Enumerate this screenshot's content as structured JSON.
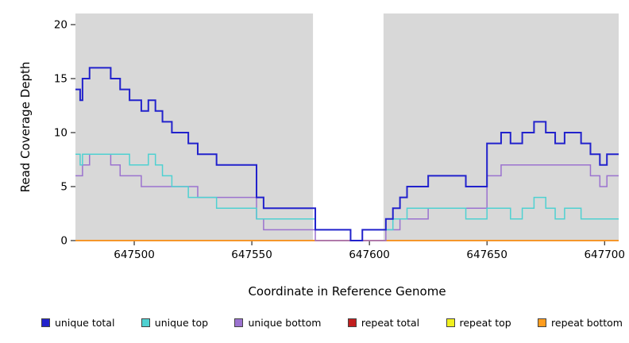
{
  "chart_data": {
    "type": "line",
    "subtype": "step-after",
    "xlabel": "Coordinate in Reference Genome",
    "ylabel": "Read Coverage Depth",
    "xlim": [
      647475,
      647706
    ],
    "ylim": [
      0,
      20
    ],
    "x_ticks": [
      647500,
      647550,
      647600,
      647650,
      647700
    ],
    "y_ticks": [
      0,
      5,
      10,
      15,
      20
    ],
    "panel_background": "#d8d8d8",
    "page_background": "#ffffff",
    "highlight_region": {
      "x0": 647576,
      "x1": 647606,
      "color": "#ffffff"
    },
    "series": [
      {
        "name": "unique total",
        "color": "#2222cc",
        "width": 2,
        "points": [
          [
            647475,
            14
          ],
          [
            647477,
            13
          ],
          [
            647478,
            15
          ],
          [
            647481,
            16
          ],
          [
            647490,
            15
          ],
          [
            647494,
            14
          ],
          [
            647498,
            13
          ],
          [
            647503,
            12
          ],
          [
            647506,
            13
          ],
          [
            647509,
            12
          ],
          [
            647512,
            11
          ],
          [
            647516,
            10
          ],
          [
            647523,
            9
          ],
          [
            647527,
            8
          ],
          [
            647535,
            7
          ],
          [
            647552,
            4
          ],
          [
            647555,
            3
          ],
          [
            647577,
            1
          ],
          [
            647592,
            0
          ],
          [
            647597,
            1
          ],
          [
            647607,
            2
          ],
          [
            647610,
            3
          ],
          [
            647613,
            4
          ],
          [
            647616,
            5
          ],
          [
            647625,
            6
          ],
          [
            647641,
            5
          ],
          [
            647650,
            9
          ],
          [
            647656,
            10
          ],
          [
            647660,
            9
          ],
          [
            647665,
            10
          ],
          [
            647670,
            11
          ],
          [
            647675,
            10
          ],
          [
            647679,
            9
          ],
          [
            647683,
            10
          ],
          [
            647690,
            9
          ],
          [
            647694,
            8
          ],
          [
            647698,
            7
          ],
          [
            647701,
            8
          ]
        ]
      },
      {
        "name": "unique top",
        "color": "#4fd1d1",
        "width": 1.5,
        "points": [
          [
            647475,
            8
          ],
          [
            647477,
            7
          ],
          [
            647478,
            8
          ],
          [
            647481,
            8
          ],
          [
            647490,
            8
          ],
          [
            647494,
            8
          ],
          [
            647498,
            7
          ],
          [
            647503,
            7
          ],
          [
            647506,
            8
          ],
          [
            647509,
            7
          ],
          [
            647512,
            6
          ],
          [
            647516,
            5
          ],
          [
            647523,
            4
          ],
          [
            647527,
            4
          ],
          [
            647535,
            3
          ],
          [
            647552,
            2
          ],
          [
            647555,
            2
          ],
          [
            647577,
            1
          ],
          [
            647592,
            0
          ],
          [
            647597,
            1
          ],
          [
            647607,
            1
          ],
          [
            647610,
            2
          ],
          [
            647613,
            2
          ],
          [
            647616,
            3
          ],
          [
            647625,
            3
          ],
          [
            647641,
            2
          ],
          [
            647650,
            3
          ],
          [
            647656,
            3
          ],
          [
            647660,
            2
          ],
          [
            647665,
            3
          ],
          [
            647670,
            4
          ],
          [
            647675,
            3
          ],
          [
            647679,
            2
          ],
          [
            647683,
            3
          ],
          [
            647690,
            2
          ],
          [
            647694,
            2
          ],
          [
            647698,
            2
          ],
          [
            647701,
            2
          ]
        ]
      },
      {
        "name": "unique bottom",
        "color": "#9b72cf",
        "width": 1.5,
        "points": [
          [
            647475,
            6
          ],
          [
            647477,
            6
          ],
          [
            647478,
            7
          ],
          [
            647481,
            8
          ],
          [
            647490,
            7
          ],
          [
            647494,
            6
          ],
          [
            647498,
            6
          ],
          [
            647503,
            5
          ],
          [
            647506,
            5
          ],
          [
            647509,
            5
          ],
          [
            647512,
            5
          ],
          [
            647516,
            5
          ],
          [
            647523,
            5
          ],
          [
            647527,
            4
          ],
          [
            647535,
            4
          ],
          [
            647552,
            2
          ],
          [
            647555,
            1
          ],
          [
            647577,
            0
          ],
          [
            647592,
            0
          ],
          [
            647597,
            0
          ],
          [
            647607,
            1
          ],
          [
            647610,
            1
          ],
          [
            647613,
            2
          ],
          [
            647616,
            2
          ],
          [
            647625,
            3
          ],
          [
            647641,
            3
          ],
          [
            647650,
            6
          ],
          [
            647656,
            7
          ],
          [
            647660,
            7
          ],
          [
            647665,
            7
          ],
          [
            647670,
            7
          ],
          [
            647675,
            7
          ],
          [
            647679,
            7
          ],
          [
            647683,
            7
          ],
          [
            647690,
            7
          ],
          [
            647694,
            6
          ],
          [
            647698,
            5
          ],
          [
            647701,
            6
          ]
        ]
      },
      {
        "name": "repeat total",
        "color": "#c21f1f",
        "width": 1.5,
        "points": [
          [
            647475,
            0
          ]
        ]
      },
      {
        "name": "repeat top",
        "color": "#f0f01f",
        "width": 1.5,
        "points": [
          [
            647475,
            0
          ]
        ]
      },
      {
        "name": "repeat bottom",
        "color": "#ff9d1f",
        "width": 1.5,
        "points": [
          [
            647475,
            0
          ]
        ]
      }
    ],
    "draw_order": [
      "repeat top",
      "repeat total",
      "repeat bottom",
      "unique bottom",
      "unique top",
      "unique total"
    ],
    "legend_order": [
      "unique total",
      "unique top",
      "unique bottom",
      "repeat total",
      "repeat top",
      "repeat bottom"
    ],
    "legend_position": "bottom"
  }
}
